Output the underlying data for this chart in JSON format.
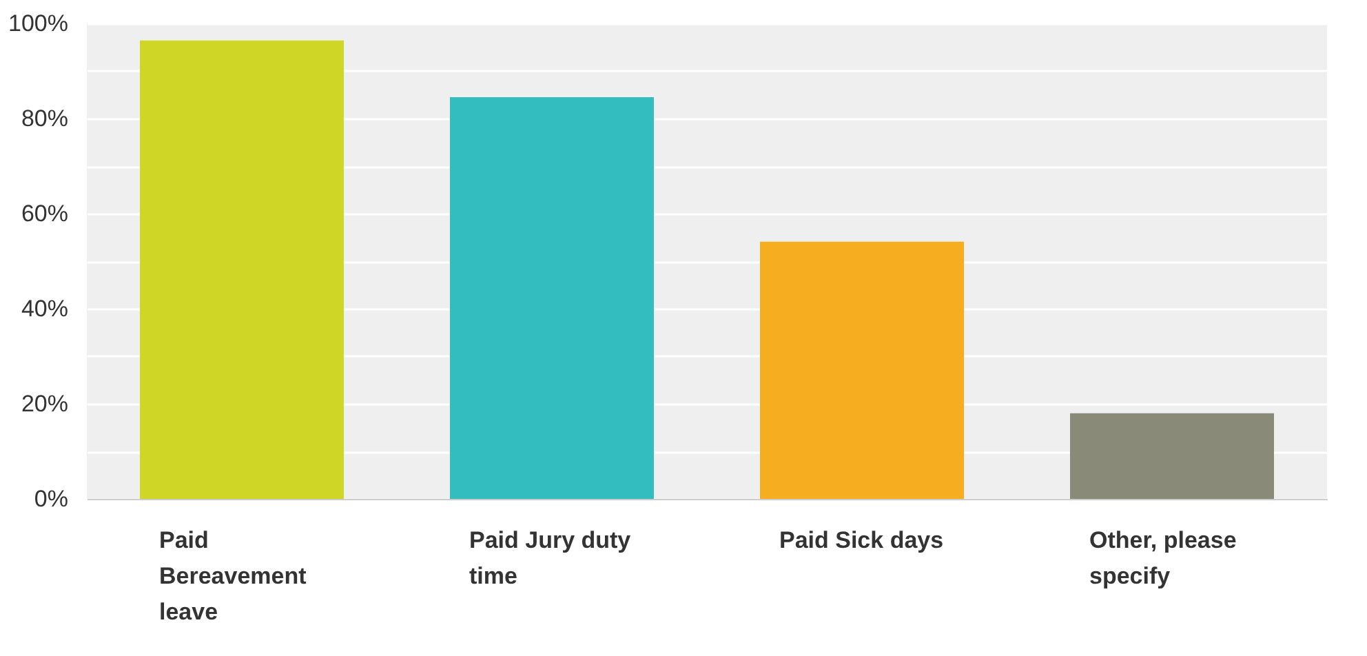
{
  "chart_data": {
    "type": "bar",
    "categories": [
      "Paid Bereavement leave",
      "Paid Jury duty time",
      "Paid Sick days",
      "Other, please specify"
    ],
    "values": [
      96.4,
      84.5,
      54.1,
      18
    ],
    "colors": [
      "#d0d626",
      "#33bdbf",
      "#f6ae20",
      "#8a8a78"
    ],
    "ylim": [
      0,
      100
    ],
    "yticks": [
      {
        "value": 0,
        "label": "0%"
      },
      {
        "value": 10,
        "label": null
      },
      {
        "value": 20,
        "label": "20%"
      },
      {
        "value": 30,
        "label": null
      },
      {
        "value": 40,
        "label": "40%"
      },
      {
        "value": 50,
        "label": null
      },
      {
        "value": 60,
        "label": "60%"
      },
      {
        "value": 70,
        "label": null
      },
      {
        "value": 80,
        "label": "80%"
      },
      {
        "value": 90,
        "label": null
      },
      {
        "value": 100,
        "label": "100%"
      }
    ],
    "grid": true
  }
}
